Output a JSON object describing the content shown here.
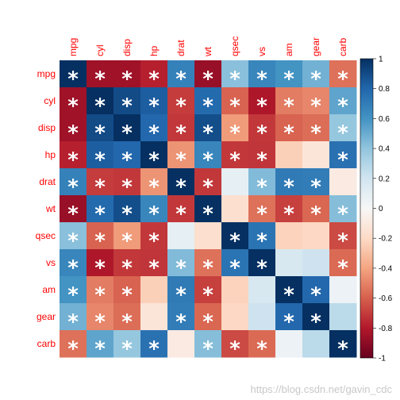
{
  "chart_data": {
    "type": "heatmap",
    "variables": [
      "mpg",
      "cyl",
      "disp",
      "hp",
      "drat",
      "wt",
      "qsec",
      "vs",
      "am",
      "gear",
      "carb"
    ],
    "matrix": [
      [
        1.0,
        -0.85,
        -0.85,
        -0.78,
        0.68,
        -0.87,
        0.42,
        0.66,
        0.6,
        0.48,
        -0.55
      ],
      [
        -0.85,
        1.0,
        0.9,
        0.83,
        -0.7,
        0.78,
        -0.59,
        -0.81,
        -0.52,
        -0.49,
        0.53
      ],
      [
        -0.85,
        0.9,
        1.0,
        0.79,
        -0.71,
        0.89,
        -0.43,
        -0.71,
        -0.59,
        -0.56,
        0.39
      ],
      [
        -0.78,
        0.83,
        0.79,
        1.0,
        -0.45,
        0.66,
        -0.71,
        -0.72,
        -0.24,
        -0.13,
        0.75
      ],
      [
        0.68,
        -0.7,
        -0.71,
        -0.45,
        1.0,
        -0.71,
        0.09,
        0.44,
        0.71,
        0.7,
        -0.09
      ],
      [
        -0.87,
        0.78,
        0.89,
        0.66,
        -0.71,
        1.0,
        -0.17,
        -0.55,
        -0.69,
        -0.58,
        0.43
      ],
      [
        0.42,
        -0.59,
        -0.43,
        -0.71,
        0.09,
        -0.17,
        1.0,
        0.74,
        -0.23,
        -0.21,
        -0.66
      ],
      [
        0.66,
        -0.81,
        -0.71,
        -0.72,
        0.44,
        -0.55,
        0.74,
        1.0,
        0.17,
        0.21,
        -0.57
      ],
      [
        0.6,
        -0.52,
        -0.59,
        -0.24,
        0.71,
        -0.69,
        -0.23,
        0.17,
        1.0,
        0.79,
        0.06
      ],
      [
        0.48,
        -0.49,
        -0.56,
        -0.13,
        0.7,
        -0.58,
        -0.21,
        0.21,
        0.79,
        1.0,
        0.27
      ],
      [
        -0.55,
        0.53,
        0.39,
        0.75,
        -0.09,
        0.43,
        -0.66,
        -0.57,
        0.06,
        0.27,
        1.0
      ]
    ],
    "significant": [
      [
        1,
        1,
        1,
        1,
        1,
        1,
        1,
        1,
        1,
        1,
        1
      ],
      [
        1,
        1,
        1,
        1,
        1,
        1,
        1,
        1,
        1,
        1,
        1
      ],
      [
        1,
        1,
        1,
        1,
        1,
        1,
        1,
        1,
        1,
        1,
        1
      ],
      [
        1,
        1,
        1,
        1,
        1,
        1,
        1,
        1,
        0,
        0,
        1
      ],
      [
        1,
        1,
        1,
        1,
        1,
        1,
        0,
        1,
        1,
        1,
        0
      ],
      [
        1,
        1,
        1,
        1,
        1,
        1,
        0,
        1,
        1,
        1,
        1
      ],
      [
        1,
        1,
        1,
        1,
        0,
        0,
        1,
        1,
        0,
        0,
        1
      ],
      [
        1,
        1,
        1,
        1,
        1,
        1,
        1,
        1,
        0,
        0,
        1
      ],
      [
        1,
        1,
        1,
        0,
        1,
        1,
        0,
        0,
        1,
        1,
        0
      ],
      [
        1,
        1,
        1,
        0,
        1,
        1,
        0,
        0,
        1,
        1,
        0
      ],
      [
        1,
        1,
        1,
        1,
        0,
        1,
        1,
        1,
        0,
        0,
        1
      ]
    ],
    "marker": "*",
    "colorbar": {
      "range": [
        -1,
        1
      ],
      "ticks": [
        "1",
        "0.8",
        "0.6",
        "0.4",
        "0.2",
        "0",
        "-0.2",
        "-0.4",
        "-0.6",
        "-0.8",
        "-1"
      ],
      "colors": [
        "#053061",
        "#2166ac",
        "#4393c3",
        "#92c5de",
        "#d1e5f0",
        "#f7f7f7",
        "#fddbc7",
        "#f4a582",
        "#d6604d",
        "#b2182b",
        "#67001f"
      ]
    },
    "label_color": "#ff0000"
  },
  "watermark": "https://blog.csdn.net/gavin_cdc"
}
